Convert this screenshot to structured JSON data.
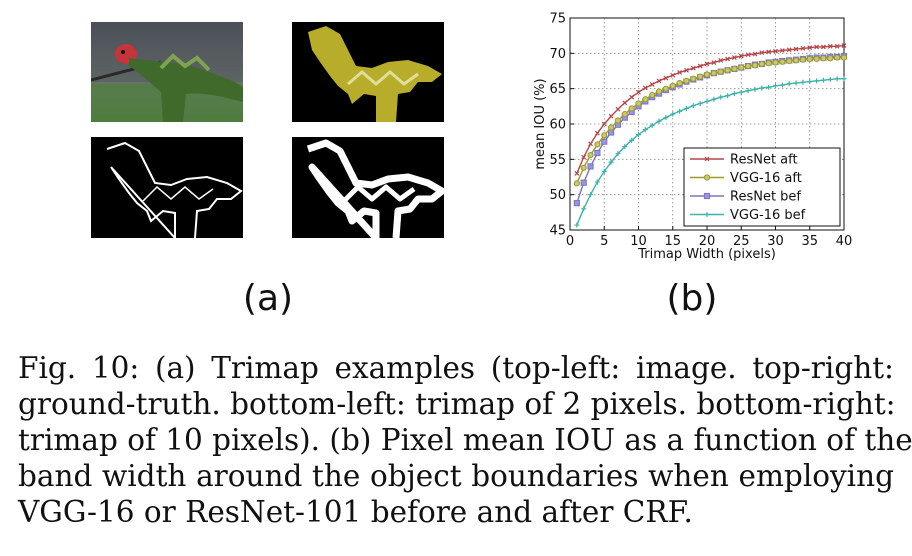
{
  "figure": {
    "label_a": "(a)",
    "label_b": "(b)",
    "caption_lines": [
      "Fig. 10: (a) Trimap examples (top-left: image. top-right:",
      "ground-truth. bottom-left: trimap of 2 pixels. bottom-right:",
      "trimap of 10 pixels). (b) Pixel mean IOU as a function of the",
      "band width around the object boundaries when employing",
      "VGG-16 or ResNet-101 before and after CRF."
    ]
  },
  "panels": {
    "top_left": "image",
    "top_right": "ground-truth",
    "bottom_left": "trimap of 2 pixels",
    "bottom_right": "trimap of 10 pixels"
  },
  "colors": {
    "resnet_aft": "#b5474a",
    "vgg_aft": "#9a9a2c",
    "resnet_bef": "#7a72c8",
    "vgg_bef": "#3fb3a8",
    "groundtruth_fill": "#b7ad2a"
  },
  "chart_data": {
    "type": "line",
    "xlabel": "Trimap Width (pixels)",
    "ylabel": "mean IOU (%)",
    "xlim": [
      0,
      40
    ],
    "ylim": [
      45,
      75
    ],
    "xticks": [
      0,
      5,
      10,
      15,
      20,
      25,
      30,
      35,
      40
    ],
    "yticks": [
      45,
      50,
      55,
      60,
      65,
      70,
      75
    ],
    "grid": true,
    "legend_position": "bottom-right",
    "x": [
      1,
      2,
      3,
      4,
      5,
      6,
      7,
      8,
      9,
      10,
      11,
      12,
      13,
      14,
      15,
      16,
      17,
      18,
      19,
      20,
      21,
      22,
      23,
      24,
      25,
      26,
      27,
      28,
      29,
      30,
      31,
      32,
      33,
      34,
      35,
      36,
      37,
      38,
      39,
      40
    ],
    "series": [
      {
        "name": "ResNet aft",
        "marker": "x",
        "values": [
          53.0,
          55.3,
          57.2,
          58.7,
          60.0,
          61.1,
          62.1,
          63.0,
          63.8,
          64.5,
          65.1,
          65.6,
          66.1,
          66.5,
          66.9,
          67.3,
          67.6,
          67.9,
          68.2,
          68.5,
          68.7,
          69.0,
          69.2,
          69.4,
          69.6,
          69.8,
          69.9,
          70.1,
          70.2,
          70.3,
          70.4,
          70.5,
          70.6,
          70.7,
          70.8,
          70.9,
          70.9,
          71.0,
          71.0,
          71.1
        ]
      },
      {
        "name": "VGG-16 aft",
        "marker": "o",
        "values": [
          51.6,
          53.8,
          55.6,
          57.1,
          58.4,
          59.5,
          60.5,
          61.4,
          62.2,
          62.9,
          63.5,
          64.1,
          64.6,
          65.0,
          65.4,
          65.8,
          66.1,
          66.4,
          66.7,
          67.0,
          67.2,
          67.4,
          67.6,
          67.8,
          68.0,
          68.2,
          68.3,
          68.5,
          68.6,
          68.7,
          68.8,
          68.9,
          69.0,
          69.1,
          69.2,
          69.2,
          69.3,
          69.3,
          69.4,
          69.4
        ]
      },
      {
        "name": "ResNet bef",
        "marker": "s",
        "values": [
          48.8,
          51.7,
          54.0,
          55.9,
          57.5,
          58.8,
          59.9,
          60.9,
          61.7,
          62.5,
          63.2,
          63.8,
          64.3,
          64.8,
          65.2,
          65.6,
          66.0,
          66.3,
          66.6,
          66.9,
          67.2,
          67.4,
          67.6,
          67.8,
          68.0,
          68.2,
          68.4,
          68.5,
          68.7,
          68.8,
          68.9,
          69.0,
          69.1,
          69.2,
          69.3,
          69.4,
          69.4,
          69.5,
          69.5,
          69.6
        ]
      },
      {
        "name": "VGG-16 bef",
        "marker": "+",
        "values": [
          45.7,
          48.0,
          50.0,
          51.8,
          53.3,
          54.6,
          55.8,
          56.8,
          57.7,
          58.5,
          59.2,
          59.8,
          60.4,
          60.9,
          61.4,
          61.8,
          62.2,
          62.6,
          62.9,
          63.2,
          63.5,
          63.8,
          64.0,
          64.3,
          64.5,
          64.7,
          64.9,
          65.1,
          65.2,
          65.4,
          65.5,
          65.7,
          65.8,
          65.9,
          66.0,
          66.1,
          66.2,
          66.3,
          66.4,
          66.4
        ]
      }
    ]
  }
}
